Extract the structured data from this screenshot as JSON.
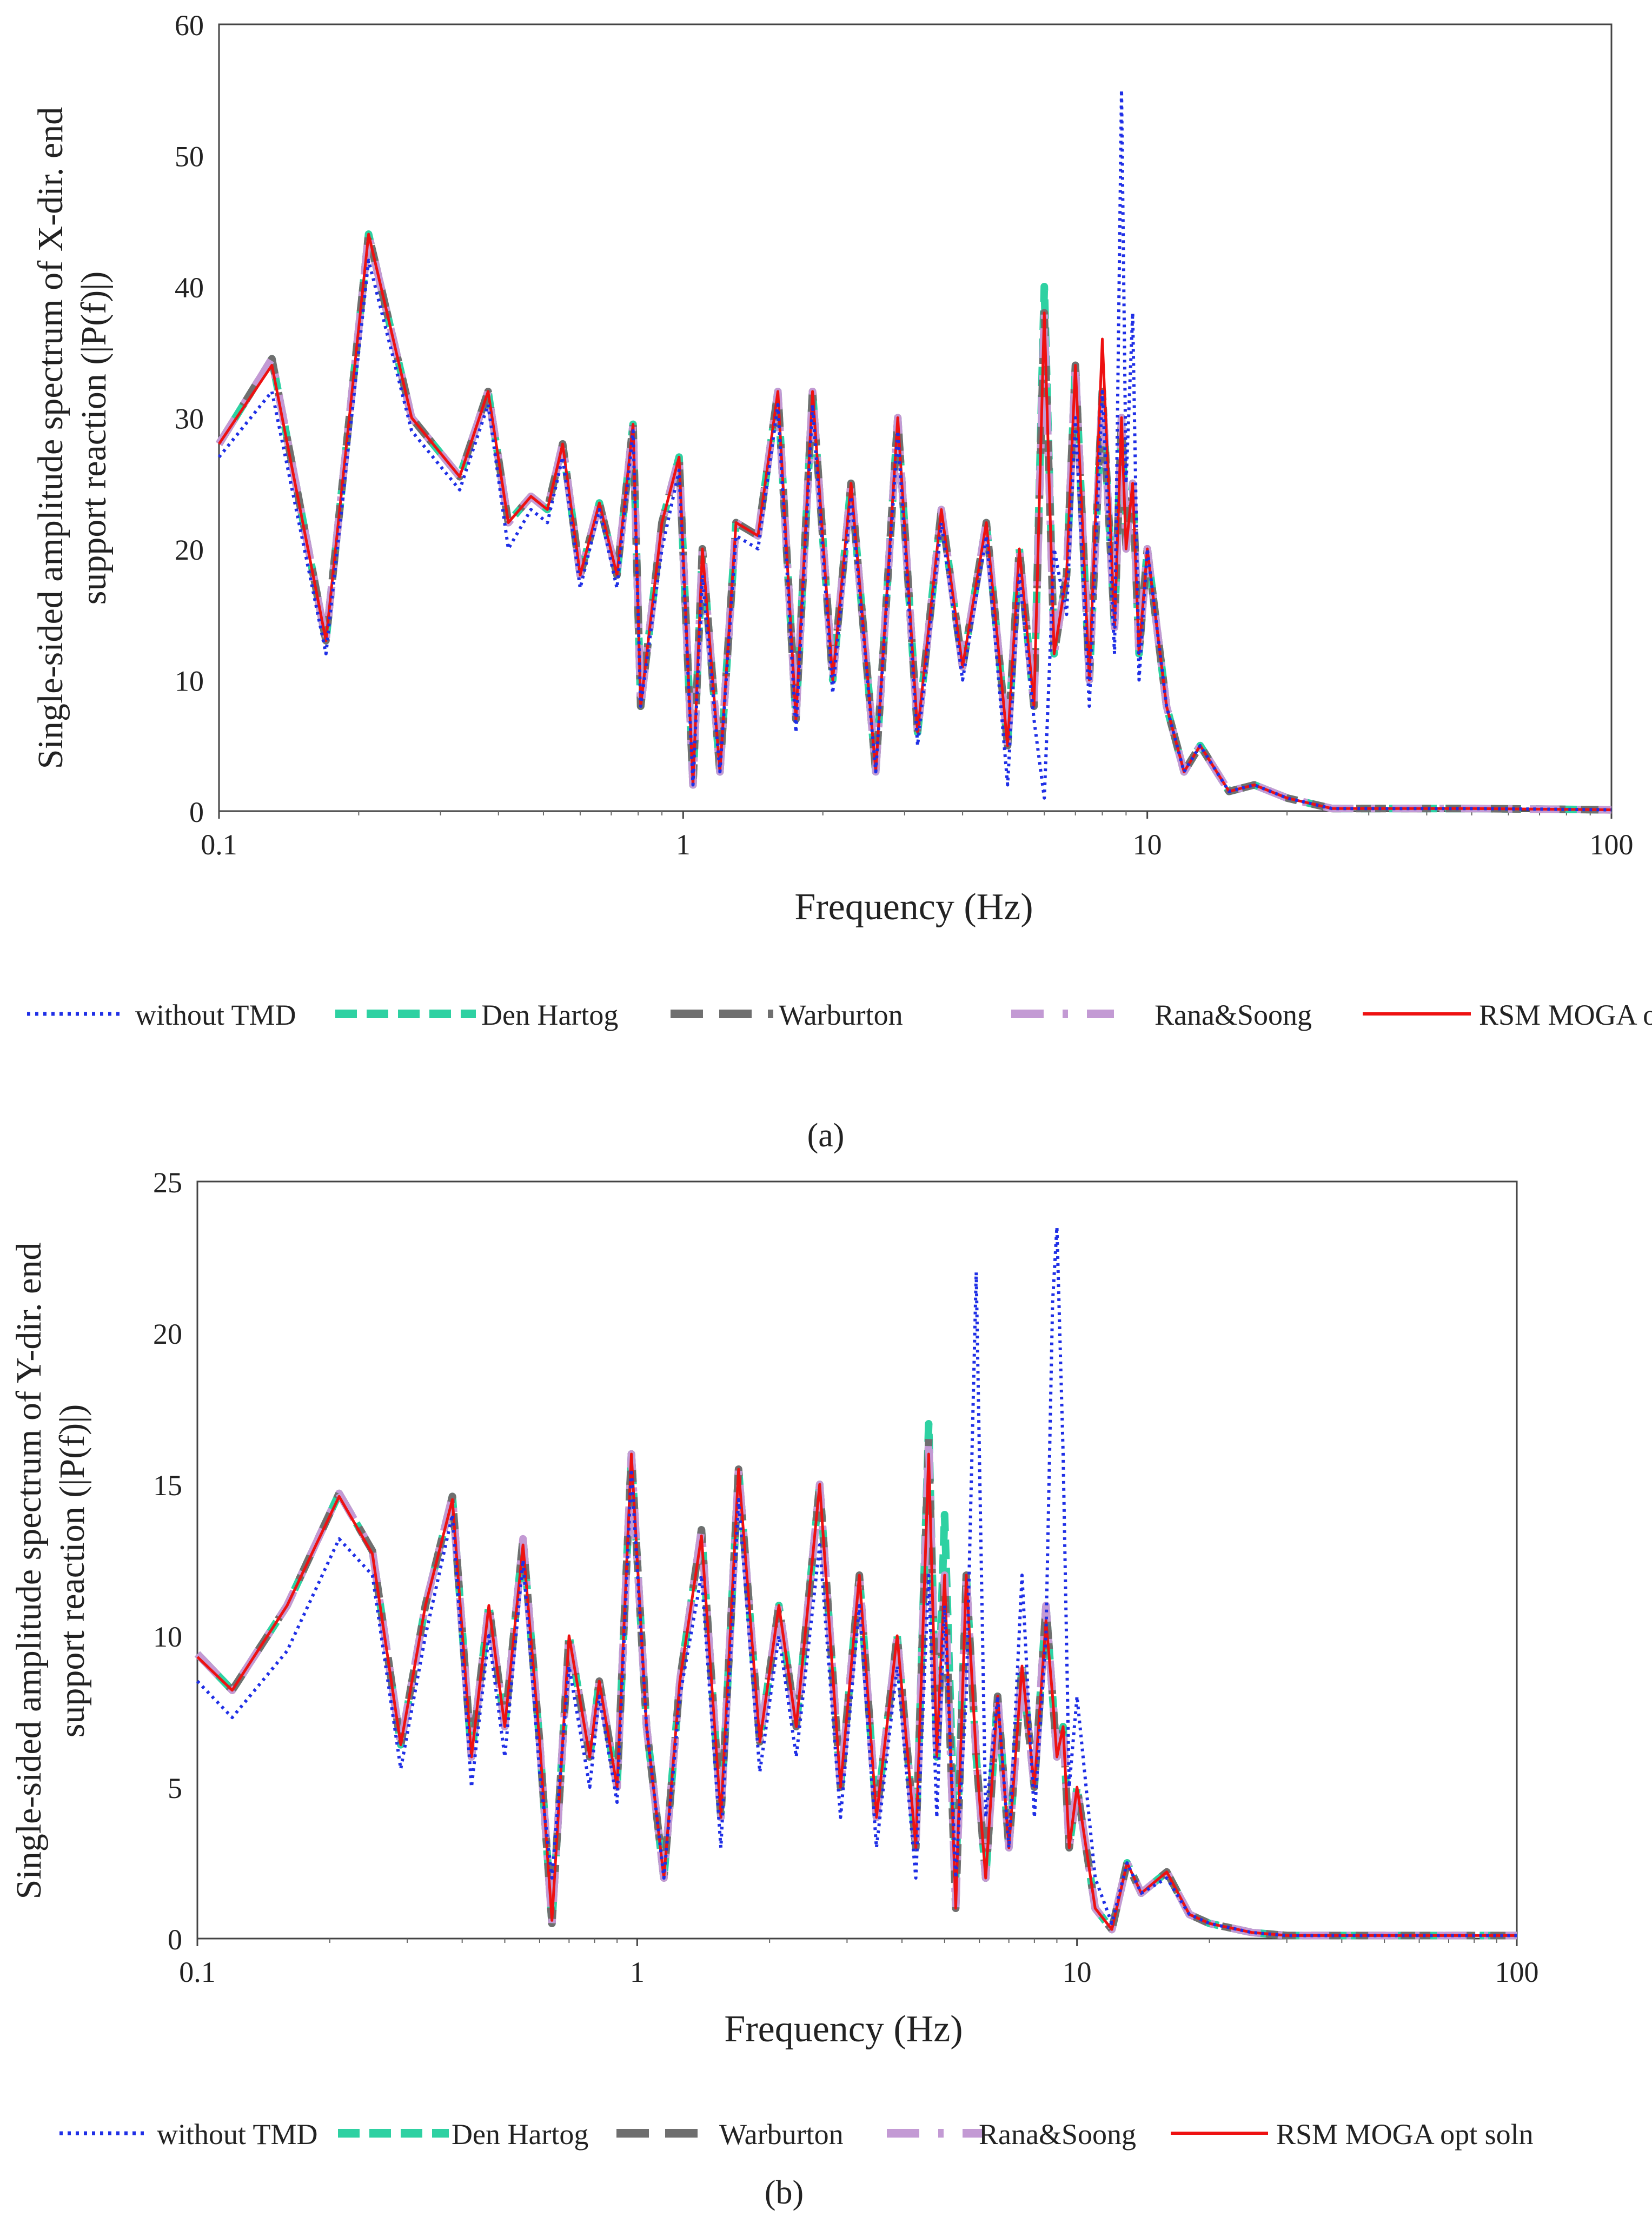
{
  "panels": [
    {
      "caption": "(a)",
      "legend": {
        "without_tmd": "without TMD",
        "den_hartog": "Den Hartog",
        "warburton": "Warburton",
        "rana_soong": "Rana&Soong",
        "rsm": "RSM MOGA opt soln"
      }
    },
    {
      "caption": "(b)",
      "legend": {
        "without_tmd": "without TMD",
        "den_hartog": "Den Hartog",
        "warburton": "Warburton",
        "rana_soong": "Rana&Soong",
        "rsm": "RSM MOGA opt soln"
      }
    }
  ],
  "chart_data": [
    {
      "type": "line",
      "title": "",
      "xlabel": "Frequency (Hz)",
      "ylabel": "Single-sided amplitude spectrum of X-dir. end support reaction (|P(f)|)",
      "ylabel_lines": [
        "Single-sided amplitude spectrum of X-dir. end",
        "support reaction (|P(f)|)"
      ],
      "xscale": "log",
      "xlim": [
        0.1,
        100
      ],
      "ylim": [
        0,
        60
      ],
      "xticks": [
        "0.1",
        "1",
        "10",
        "100"
      ],
      "yticks": [
        "0",
        "10",
        "20",
        "30",
        "40",
        "50",
        "60"
      ],
      "legend_position": "bottom",
      "colors": {
        "without_tmd": "#1f2fe6",
        "den_hartog": "#2ed1a2",
        "warburton": "#6f6f6f",
        "rana_soong": "#c39ad4",
        "rsm": "#ee1111"
      },
      "x": [
        0.1,
        0.13,
        0.17,
        0.21,
        0.26,
        0.33,
        0.38,
        0.42,
        0.47,
        0.51,
        0.55,
        0.6,
        0.66,
        0.72,
        0.78,
        0.81,
        0.9,
        0.98,
        1.05,
        1.1,
        1.2,
        1.3,
        1.45,
        1.6,
        1.75,
        1.9,
        2.1,
        2.3,
        2.6,
        2.9,
        3.2,
        3.6,
        4.0,
        4.5,
        5.0,
        5.3,
        5.7,
        6.0,
        6.3,
        6.7,
        7.0,
        7.5,
        8.0,
        8.5,
        8.8,
        9.0,
        9.3,
        9.6,
        10.0,
        11,
        12,
        13,
        15,
        17,
        20,
        25,
        30,
        50,
        100
      ],
      "series": [
        {
          "name": "without TMD",
          "key": "without_tmd",
          "values": [
            27,
            32,
            12,
            42,
            29,
            24.5,
            31,
            20,
            23,
            22,
            27,
            17,
            23,
            17,
            29,
            8,
            20,
            26,
            2,
            18,
            3,
            21,
            20,
            31,
            6,
            31,
            9,
            24,
            3,
            29,
            5,
            22,
            10,
            21,
            2,
            18,
            7,
            1,
            20,
            15,
            30,
            8,
            32,
            12,
            55,
            25,
            38,
            10,
            20,
            8,
            3,
            5,
            1.5,
            2,
            1,
            0.2,
            0.2,
            0.2,
            0.1
          ]
        },
        {
          "name": "Den Hartog",
          "key": "den_hartog",
          "values": [
            28,
            34.5,
            13,
            44,
            30,
            25.5,
            32,
            22,
            24,
            23,
            28,
            18,
            23.5,
            18,
            29.5,
            8,
            22,
            27,
            2,
            20,
            3,
            22,
            21,
            32,
            7,
            32,
            10,
            25,
            3,
            30,
            6,
            23,
            11,
            22,
            5,
            20,
            8,
            40,
            12,
            18,
            34,
            10,
            32,
            14,
            30,
            20,
            25,
            12,
            20,
            8,
            3,
            5,
            1.5,
            2,
            1,
            0.2,
            0.2,
            0.2,
            0.1
          ]
        },
        {
          "name": "Warburton",
          "key": "warburton",
          "values": [
            28,
            34.5,
            13,
            44,
            30,
            25.5,
            32,
            22,
            24,
            23,
            28,
            18,
            23.5,
            18,
            29.5,
            8,
            22,
            27,
            2,
            20,
            3,
            22,
            21,
            32,
            7,
            32,
            10,
            25,
            3,
            30,
            6,
            23,
            11,
            22,
            5,
            20,
            8,
            38,
            12,
            18,
            34,
            10,
            32,
            14,
            30,
            20,
            25,
            12,
            20,
            8,
            3,
            5,
            1.5,
            2,
            1,
            0.2,
            0.2,
            0.2,
            0.1
          ]
        },
        {
          "name": "Rana&Soong",
          "key": "rana_soong",
          "values": [
            28,
            34.5,
            13,
            44,
            30,
            25.5,
            32,
            22,
            24,
            23,
            28,
            18,
            23.5,
            18,
            29.5,
            8,
            22,
            27,
            2,
            20,
            3,
            22,
            21,
            32,
            7,
            32,
            10,
            25,
            3,
            30,
            6,
            23,
            11,
            22,
            5,
            20,
            8,
            38,
            12,
            18,
            34,
            10,
            32,
            14,
            30,
            20,
            25,
            12,
            20,
            8,
            3,
            5,
            1.5,
            2,
            1,
            0.2,
            0.2,
            0.2,
            0.1
          ]
        },
        {
          "name": "RSM MOGA opt soln",
          "key": "rsm",
          "values": [
            28,
            34,
            13,
            44,
            30,
            25.5,
            32,
            22,
            24,
            23,
            28,
            18,
            23.5,
            18,
            29.5,
            8,
            22,
            27,
            2,
            20,
            3,
            22,
            21,
            32,
            7,
            32,
            10,
            25,
            3,
            30,
            6,
            23,
            11,
            22,
            5,
            20,
            8,
            38,
            12,
            18,
            34,
            10,
            36,
            14,
            30,
            20,
            25,
            12,
            20,
            8,
            3,
            5,
            1.5,
            2,
            1,
            0.2,
            0.2,
            0.2,
            0.1
          ]
        }
      ]
    },
    {
      "type": "line",
      "title": "",
      "xlabel": "Frequency (Hz)",
      "ylabel": "Single-sided amplitude spectrum of Y-dir. end support reaction (|P(f)|)",
      "ylabel_lines": [
        "Single-sided amplitude spectrum of Y-dir. end",
        "support reaction (|P(f)|)"
      ],
      "xscale": "log",
      "xlim": [
        0.1,
        100
      ],
      "ylim": [
        0,
        25
      ],
      "xticks": [
        "0.1",
        "1",
        "10",
        "100"
      ],
      "yticks": [
        "0",
        "5",
        "10",
        "15",
        "20",
        "25"
      ],
      "legend_position": "bottom",
      "colors": {
        "without_tmd": "#1f2fe6",
        "den_hartog": "#2ed1a2",
        "warburton": "#6f6f6f",
        "rana_soong": "#c39ad4",
        "rsm": "#ee1111"
      },
      "x": [
        0.1,
        0.12,
        0.16,
        0.21,
        0.25,
        0.29,
        0.33,
        0.38,
        0.42,
        0.46,
        0.5,
        0.55,
        0.6,
        0.64,
        0.7,
        0.78,
        0.82,
        0.9,
        0.97,
        1.05,
        1.15,
        1.25,
        1.4,
        1.55,
        1.7,
        1.9,
        2.1,
        2.3,
        2.6,
        2.9,
        3.2,
        3.5,
        3.9,
        4.3,
        4.6,
        4.8,
        5.0,
        5.3,
        5.6,
        5.9,
        6.2,
        6.6,
        7.0,
        7.5,
        8.0,
        8.5,
        8.8,
        9.0,
        9.3,
        9.6,
        10.0,
        11,
        12,
        13,
        14,
        16,
        18,
        20,
        25,
        30,
        50,
        100
      ],
      "series": [
        {
          "name": "without TMD",
          "key": "without_tmd",
          "values": [
            8.5,
            7.3,
            9.5,
            13.2,
            12,
            5.6,
            10,
            14,
            5,
            10,
            6,
            12.5,
            5.5,
            2,
            9,
            5,
            8,
            4.5,
            15.5,
            7,
            2,
            8,
            12,
            3,
            14.5,
            5.5,
            10,
            6,
            13,
            4,
            11,
            3,
            9,
            2,
            12,
            4,
            11,
            2,
            8,
            22,
            4,
            8,
            3,
            12,
            4,
            10,
            21,
            23.5,
            16,
            5,
            8,
            2,
            0.5,
            2.5,
            1.5,
            2,
            0.8,
            0.5,
            0.2,
            0.1,
            0.1,
            0.1
          ]
        },
        {
          "name": "Den Hartog",
          "key": "den_hartog",
          "values": [
            9.4,
            8.2,
            11,
            14.7,
            12.8,
            6.4,
            11,
            14.6,
            6,
            11,
            7,
            13.2,
            6.5,
            0.5,
            10,
            6,
            8.5,
            5,
            16,
            7,
            2,
            8.5,
            13.5,
            4,
            15.5,
            6.5,
            11,
            7,
            15,
            5,
            12,
            4,
            10,
            3,
            17,
            6,
            14,
            2,
            12,
            6,
            2,
            8,
            3,
            9,
            5,
            11,
            8,
            6,
            7,
            3,
            5,
            1,
            0.3,
            2.5,
            1.5,
            2.2,
            0.8,
            0.5,
            0.2,
            0.1,
            0.1,
            0.1
          ]
        },
        {
          "name": "Warburton",
          "key": "warburton",
          "values": [
            9.4,
            8.2,
            11,
            14.7,
            12.8,
            6.4,
            11,
            14.6,
            6,
            11,
            7,
            13.2,
            6.5,
            0.5,
            10,
            6,
            8.5,
            5,
            16,
            7,
            2,
            8.5,
            13.5,
            4,
            15.5,
            6.5,
            11,
            7,
            15,
            5,
            12,
            4,
            10,
            3,
            16.5,
            6,
            12,
            1,
            12,
            6,
            2,
            8,
            3,
            9,
            5,
            11,
            8,
            6,
            7,
            3,
            5,
            1,
            0.3,
            2.5,
            1.5,
            2.2,
            0.8,
            0.5,
            0.2,
            0.1,
            0.1,
            0.1
          ]
        },
        {
          "name": "Rana&Soong",
          "key": "rana_soong",
          "values": [
            9.4,
            8.2,
            11,
            14.7,
            12.8,
            6.4,
            11,
            14.6,
            6,
            11,
            7,
            13.2,
            6.5,
            0.5,
            10,
            6,
            8.5,
            5,
            16,
            7,
            2,
            8.5,
            13.5,
            4,
            15.5,
            6.5,
            11,
            7,
            15,
            5,
            12,
            4,
            10,
            3,
            16.5,
            6,
            12,
            1,
            12,
            6,
            2,
            8,
            3,
            9,
            5,
            11,
            8,
            6,
            7,
            3,
            5,
            1,
            0.3,
            2.5,
            1.5,
            2.2,
            0.8,
            0.5,
            0.2,
            0.1,
            0.1,
            0.1
          ]
        },
        {
          "name": "RSM MOGA opt soln",
          "key": "rsm",
          "values": [
            9.3,
            8.2,
            11,
            14.6,
            12.7,
            6.4,
            11,
            14.5,
            6,
            11,
            7,
            13,
            6.5,
            0.6,
            10,
            6,
            8.5,
            5,
            16,
            7,
            2,
            8.5,
            13.3,
            4,
            15.5,
            6.5,
            11,
            7,
            15,
            5,
            12,
            4,
            10,
            3,
            16,
            6,
            12,
            1,
            12,
            6,
            2,
            8,
            3,
            9,
            5,
            10.5,
            8,
            6,
            7,
            3,
            5,
            1,
            0.3,
            2.5,
            1.5,
            2.2,
            0.8,
            0.5,
            0.2,
            0.1,
            0.1,
            0.1
          ]
        }
      ]
    }
  ]
}
